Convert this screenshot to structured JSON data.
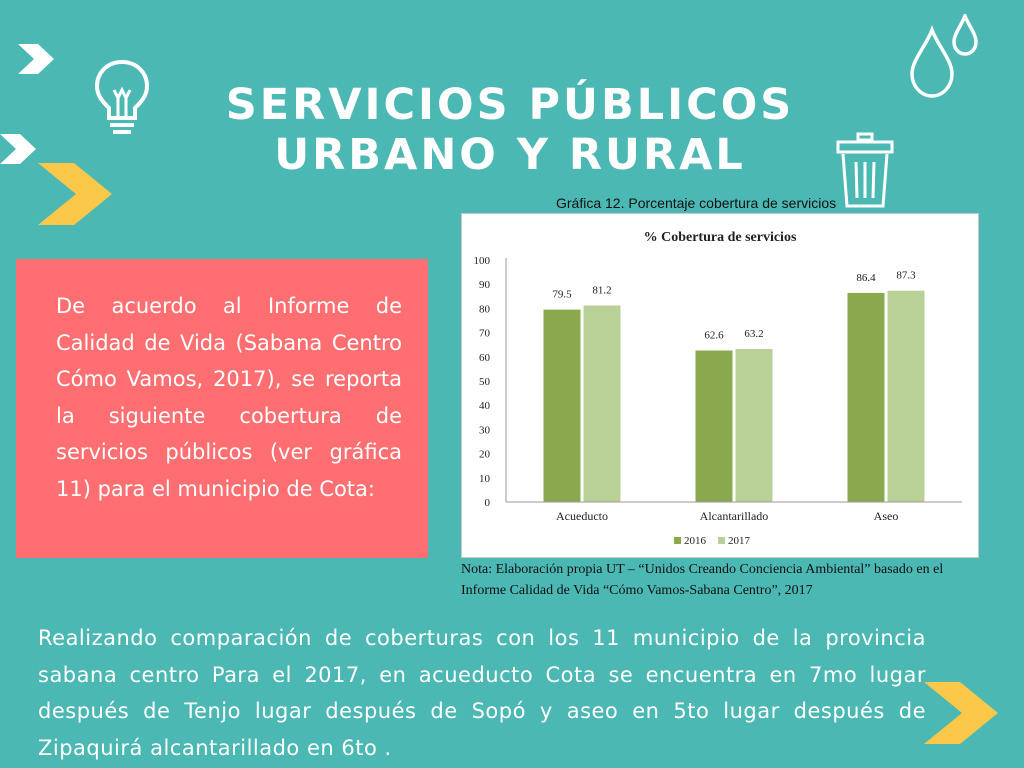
{
  "header": {
    "title_line1": "SERVICIOS PÚBLICOS",
    "title_line2": "URBANO Y RURAL"
  },
  "intro": {
    "text": "De acuerdo al Informe de Calidad de Vida (Sabana Centro Cómo Vamos, 2017), se reporta la  siguiente cobertura de servicios públicos (ver gráfica 11) para el municipio de Cota:"
  },
  "chart_caption": "Gráfica 12. Porcentaje cobertura de servicios",
  "chart_note": "Nota: Elaboración propia UT – “Unidos Creando Conciencia Ambiental” basado en el Informe Calidad de Vida “Cómo Vamos-Sabana Centro”, 2017",
  "chart_data": {
    "type": "bar",
    "title": "% Cobertura de servicios",
    "categories": [
      "Acueducto",
      "Alcantarillado",
      "Aseo"
    ],
    "series": [
      {
        "name": "2016",
        "values": [
          79.5,
          62.6,
          86.4
        ],
        "color": "#8aa84e"
      },
      {
        "name": "2017",
        "values": [
          81.2,
          63.2,
          87.3
        ],
        "color": "#b9d196"
      }
    ],
    "ylim": [
      0,
      100
    ],
    "yticks": [
      "0",
      "10",
      "20",
      "30",
      "40",
      "50",
      "60",
      "70",
      "80",
      "90",
      "100"
    ],
    "xlabel": "",
    "ylabel": "",
    "grid": false,
    "legend_position": "bottom"
  },
  "conclusion": {
    "text": "Realizando comparación de coberturas con los 11 municipio de la provincia sabana centro Para el 2017, en acueducto Cota se encuentra en 7mo lugar después de Tenjo lugar después de Sopó  y aseo en 5to lugar después de Zipaquirá alcantarillado en 6to ."
  },
  "colors": {
    "background": "#4cb8b4",
    "panel": "#ff6f72",
    "accent_yellow": "#fcc84a",
    "white": "#ffffff"
  },
  "icons": [
    "chevron-right-icon",
    "lightbulb-icon",
    "water-drops-icon",
    "trash-bin-icon"
  ]
}
